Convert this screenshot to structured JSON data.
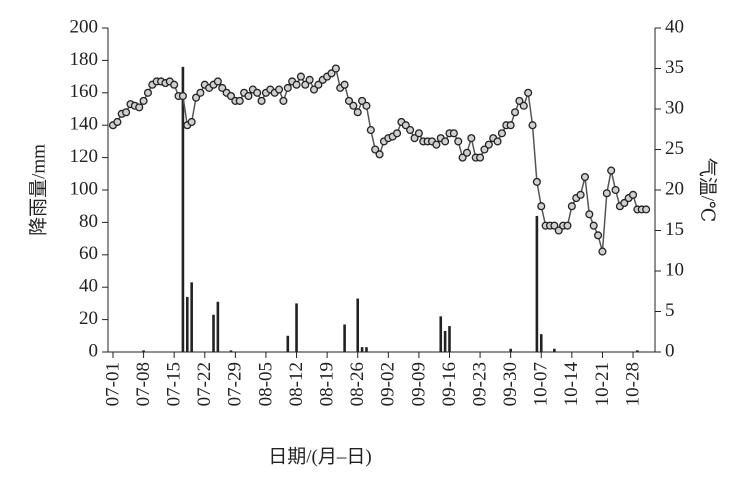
{
  "chart_data": {
    "type": "combo",
    "xlabel": "日期/(月–日)",
    "ylabel": "降雨量/mm",
    "y2label": "气温/℃",
    "categories": [
      "07-01",
      null,
      null,
      null,
      null,
      null,
      null,
      "07-08",
      null,
      null,
      null,
      null,
      null,
      null,
      "07-15",
      null,
      null,
      null,
      null,
      null,
      null,
      "07-22",
      null,
      null,
      null,
      null,
      null,
      null,
      "07-29",
      null,
      null,
      null,
      null,
      null,
      null,
      "08-05",
      null,
      null,
      null,
      null,
      null,
      null,
      "08-12",
      null,
      null,
      null,
      null,
      null,
      null,
      "08-19",
      null,
      null,
      null,
      null,
      null,
      null,
      "08-26",
      null,
      null,
      null,
      null,
      null,
      null,
      "09-02",
      null,
      null,
      null,
      null,
      null,
      null,
      "09-09",
      null,
      null,
      null,
      null,
      null,
      null,
      "09-16",
      null,
      null,
      null,
      null,
      null,
      null,
      "09-23",
      null,
      null,
      null,
      null,
      null,
      null,
      "09-30",
      null,
      null,
      null,
      null,
      null,
      null,
      "10-07",
      null,
      null,
      null,
      null,
      null,
      null,
      "10-14",
      null,
      null,
      null,
      null,
      null,
      null,
      "10-21",
      null,
      null,
      null,
      null,
      null,
      null,
      "10-28",
      null,
      null,
      null
    ],
    "ylim": [
      0,
      200
    ],
    "yticks": [
      0,
      20,
      40,
      60,
      80,
      100,
      120,
      140,
      160,
      180,
      200
    ],
    "y2lim": [
      0,
      40
    ],
    "y2ticks": [
      0,
      5,
      10,
      15,
      20,
      25,
      30,
      35,
      40
    ],
    "series": [
      {
        "type": "bar",
        "axis": "y",
        "color": "#222222",
        "values": [
          0,
          0,
          0,
          0,
          0,
          0,
          0,
          1,
          0,
          0,
          0,
          0,
          0,
          0,
          0,
          0,
          176,
          34,
          43,
          0,
          0,
          0,
          0,
          23,
          31,
          0,
          0,
          1,
          0,
          0,
          0,
          0,
          0,
          0,
          0,
          0,
          0,
          0,
          0,
          0,
          10,
          0,
          30,
          0,
          0,
          0,
          0,
          0,
          0,
          0,
          0,
          0,
          0,
          17,
          0,
          0,
          33,
          3,
          3,
          0,
          0,
          0,
          0,
          0,
          0,
          0,
          0,
          0,
          0,
          0,
          0,
          0,
          0,
          0,
          0,
          22,
          13,
          16,
          0,
          0,
          0,
          0,
          0,
          0,
          0,
          0,
          0,
          0,
          0,
          0,
          0,
          2,
          0,
          0,
          0,
          0,
          0,
          84,
          11,
          0,
          0,
          2,
          0,
          0,
          0,
          0,
          0,
          0,
          0,
          0,
          0,
          0,
          0,
          0,
          0,
          0,
          0,
          0,
          0,
          0,
          1,
          0,
          0
        ]
      },
      {
        "type": "line",
        "axis": "y2",
        "color": "#555555",
        "values": [
          28,
          28.4,
          29.4,
          29.6,
          30.6,
          30.4,
          30.2,
          31,
          32,
          33,
          33.4,
          33.4,
          33.2,
          33.4,
          33,
          31.6,
          31.6,
          28,
          28.4,
          31.4,
          32,
          33,
          32.6,
          33,
          33.4,
          32.6,
          32,
          31.6,
          31,
          31,
          32,
          31.6,
          32.4,
          32,
          31,
          32,
          32.4,
          32,
          32.4,
          31,
          32.6,
          33.4,
          33,
          34,
          33,
          33.6,
          32.4,
          33,
          33.6,
          34,
          34.4,
          35,
          32.6,
          33,
          31,
          30.4,
          29.6,
          31,
          30.4,
          27.4,
          25,
          24.4,
          26,
          26.4,
          26.6,
          27,
          28.4,
          28,
          27.4,
          26.4,
          27,
          26,
          26,
          26,
          25.6,
          26.4,
          26,
          27,
          27,
          26,
          24,
          24.6,
          26.4,
          24,
          24,
          25,
          25.6,
          26.4,
          26,
          27,
          28,
          28,
          29.6,
          31,
          30.4,
          32,
          28,
          21,
          18,
          15.6,
          15.6,
          15.6,
          15,
          15.6,
          15.6,
          18,
          19,
          19.4,
          21.6,
          17,
          15.6,
          14.4,
          12.4,
          19.6,
          22.4,
          20,
          18,
          18.4,
          19,
          19.4,
          17.6,
          17.6,
          17.6
        ]
      }
    ]
  }
}
